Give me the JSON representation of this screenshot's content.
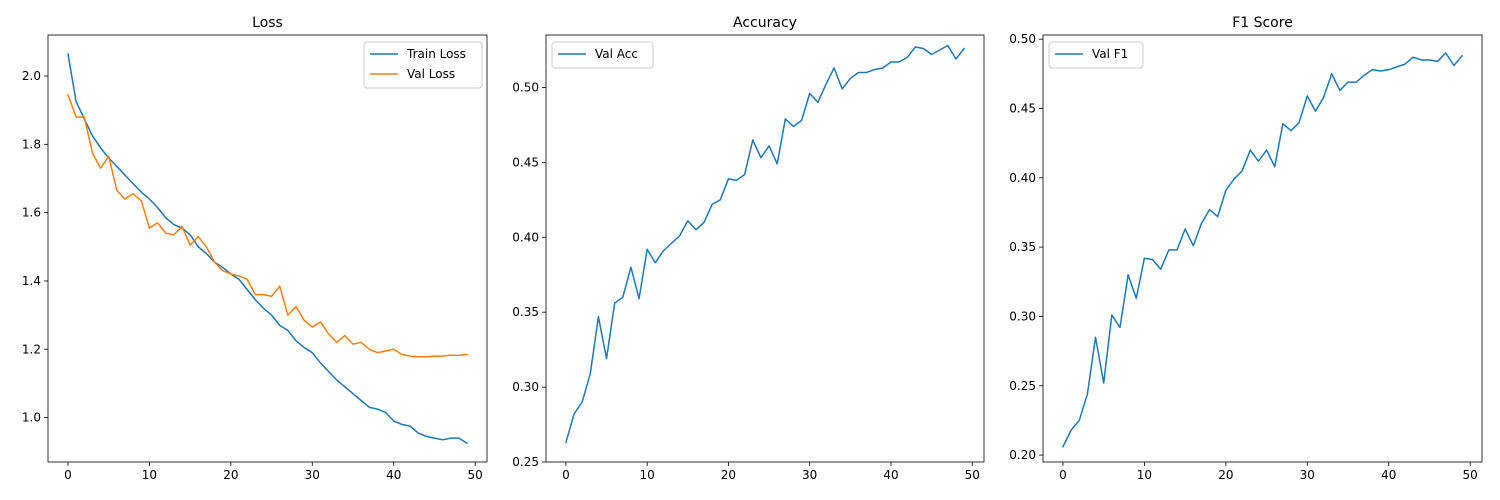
{
  "colors": {
    "blue": "#1f77b4",
    "orange": "#ff7f0e"
  },
  "chart_data": [
    {
      "type": "line",
      "title": "Loss",
      "xlabel": "",
      "ylabel": "",
      "xlim": [
        -2.45,
        51.45
      ],
      "ylim": [
        0.87,
        2.12
      ],
      "xticks": [
        0,
        10,
        20,
        30,
        40,
        50
      ],
      "yticks": [
        1.0,
        1.2,
        1.4,
        1.6,
        1.8,
        2.0
      ],
      "ytick_labels": [
        "1.0",
        "1.2",
        "1.4",
        "1.6",
        "1.8",
        "2.0"
      ],
      "legend": "top-right",
      "grid": false,
      "x": [
        0,
        1,
        2,
        3,
        4,
        5,
        6,
        7,
        8,
        9,
        10,
        11,
        12,
        13,
        14,
        15,
        16,
        17,
        18,
        19,
        20,
        21,
        22,
        23,
        24,
        25,
        26,
        27,
        28,
        29,
        30,
        31,
        32,
        33,
        34,
        35,
        36,
        37,
        38,
        39,
        40,
        41,
        42,
        43,
        44,
        45,
        46,
        47,
        48,
        49
      ],
      "series": [
        {
          "name": "Train Loss",
          "color": "#1f77b4",
          "values": [
            2.065,
            1.925,
            1.875,
            1.825,
            1.79,
            1.76,
            1.735,
            1.71,
            1.685,
            1.66,
            1.64,
            1.615,
            1.585,
            1.565,
            1.555,
            1.535,
            1.5,
            1.48,
            1.455,
            1.44,
            1.42,
            1.405,
            1.375,
            1.345,
            1.32,
            1.3,
            1.27,
            1.255,
            1.225,
            1.205,
            1.19,
            1.16,
            1.135,
            1.11,
            1.09,
            1.07,
            1.05,
            1.03,
            1.025,
            1.015,
            0.99,
            0.98,
            0.975,
            0.955,
            0.945,
            0.94,
            0.935,
            0.94,
            0.94,
            0.925
          ]
        },
        {
          "name": "Val Loss",
          "color": "#ff7f0e",
          "values": [
            1.945,
            1.88,
            1.88,
            1.775,
            1.73,
            1.765,
            1.665,
            1.64,
            1.655,
            1.635,
            1.555,
            1.57,
            1.54,
            1.535,
            1.56,
            1.505,
            1.53,
            1.5,
            1.455,
            1.43,
            1.42,
            1.415,
            1.405,
            1.36,
            1.36,
            1.355,
            1.385,
            1.3,
            1.325,
            1.285,
            1.265,
            1.28,
            1.245,
            1.22,
            1.24,
            1.215,
            1.22,
            1.2,
            1.19,
            1.195,
            1.2,
            1.185,
            1.18,
            1.178,
            1.178,
            1.18,
            1.18,
            1.183,
            1.182,
            1.185
          ]
        }
      ]
    },
    {
      "type": "line",
      "title": "Accuracy",
      "xlabel": "",
      "ylabel": "",
      "xlim": [
        -2.45,
        51.45
      ],
      "ylim": [
        0.25,
        0.535
      ],
      "xticks": [
        0,
        10,
        20,
        30,
        40,
        50
      ],
      "yticks": [
        0.25,
        0.3,
        0.35,
        0.4,
        0.45,
        0.5
      ],
      "ytick_labels": [
        "0.25",
        "0.30",
        "0.35",
        "0.40",
        "0.45",
        "0.50"
      ],
      "legend": "top-left",
      "grid": false,
      "x": [
        0,
        1,
        2,
        3,
        4,
        5,
        6,
        7,
        8,
        9,
        10,
        11,
        12,
        13,
        14,
        15,
        16,
        17,
        18,
        19,
        20,
        21,
        22,
        23,
        24,
        25,
        26,
        27,
        28,
        29,
        30,
        31,
        32,
        33,
        34,
        35,
        36,
        37,
        38,
        39,
        40,
        41,
        42,
        43,
        44,
        45,
        46,
        47,
        48,
        49
      ],
      "series": [
        {
          "name": "Val Acc",
          "color": "#1f77b4",
          "values": [
            0.263,
            0.282,
            0.29,
            0.309,
            0.347,
            0.319,
            0.356,
            0.36,
            0.38,
            0.359,
            0.392,
            0.383,
            0.391,
            0.396,
            0.401,
            0.411,
            0.405,
            0.41,
            0.422,
            0.425,
            0.439,
            0.438,
            0.442,
            0.465,
            0.453,
            0.461,
            0.449,
            0.479,
            0.474,
            0.478,
            0.496,
            0.49,
            0.502,
            0.513,
            0.499,
            0.506,
            0.51,
            0.51,
            0.512,
            0.513,
            0.517,
            0.517,
            0.52,
            0.527,
            0.526,
            0.522,
            0.525,
            0.528,
            0.519,
            0.526
          ]
        }
      ]
    },
    {
      "type": "line",
      "title": "F1 Score",
      "xlabel": "",
      "ylabel": "",
      "xlim": [
        -2.45,
        51.45
      ],
      "ylim": [
        0.195,
        0.503
      ],
      "xticks": [
        0,
        10,
        20,
        30,
        40,
        50
      ],
      "yticks": [
        0.2,
        0.25,
        0.3,
        0.35,
        0.4,
        0.45,
        0.5
      ],
      "ytick_labels": [
        "0.20",
        "0.25",
        "0.30",
        "0.35",
        "0.40",
        "0.45",
        "0.50"
      ],
      "legend": "top-left",
      "grid": false,
      "x": [
        0,
        1,
        2,
        3,
        4,
        5,
        6,
        7,
        8,
        9,
        10,
        11,
        12,
        13,
        14,
        15,
        16,
        17,
        18,
        19,
        20,
        21,
        22,
        23,
        24,
        25,
        26,
        27,
        28,
        29,
        30,
        31,
        32,
        33,
        34,
        35,
        36,
        37,
        38,
        39,
        40,
        41,
        42,
        43,
        44,
        45,
        46,
        47,
        48,
        49
      ],
      "series": [
        {
          "name": "Val F1",
          "color": "#1f77b4",
          "values": [
            0.206,
            0.218,
            0.225,
            0.244,
            0.285,
            0.252,
            0.301,
            0.292,
            0.33,
            0.313,
            0.342,
            0.341,
            0.334,
            0.348,
            0.348,
            0.363,
            0.351,
            0.367,
            0.377,
            0.372,
            0.391,
            0.399,
            0.405,
            0.42,
            0.412,
            0.42,
            0.408,
            0.439,
            0.434,
            0.44,
            0.459,
            0.448,
            0.458,
            0.475,
            0.463,
            0.469,
            0.469,
            0.474,
            0.478,
            0.477,
            0.478,
            0.48,
            0.482,
            0.487,
            0.485,
            0.485,
            0.484,
            0.49,
            0.481,
            0.488
          ]
        }
      ]
    }
  ]
}
